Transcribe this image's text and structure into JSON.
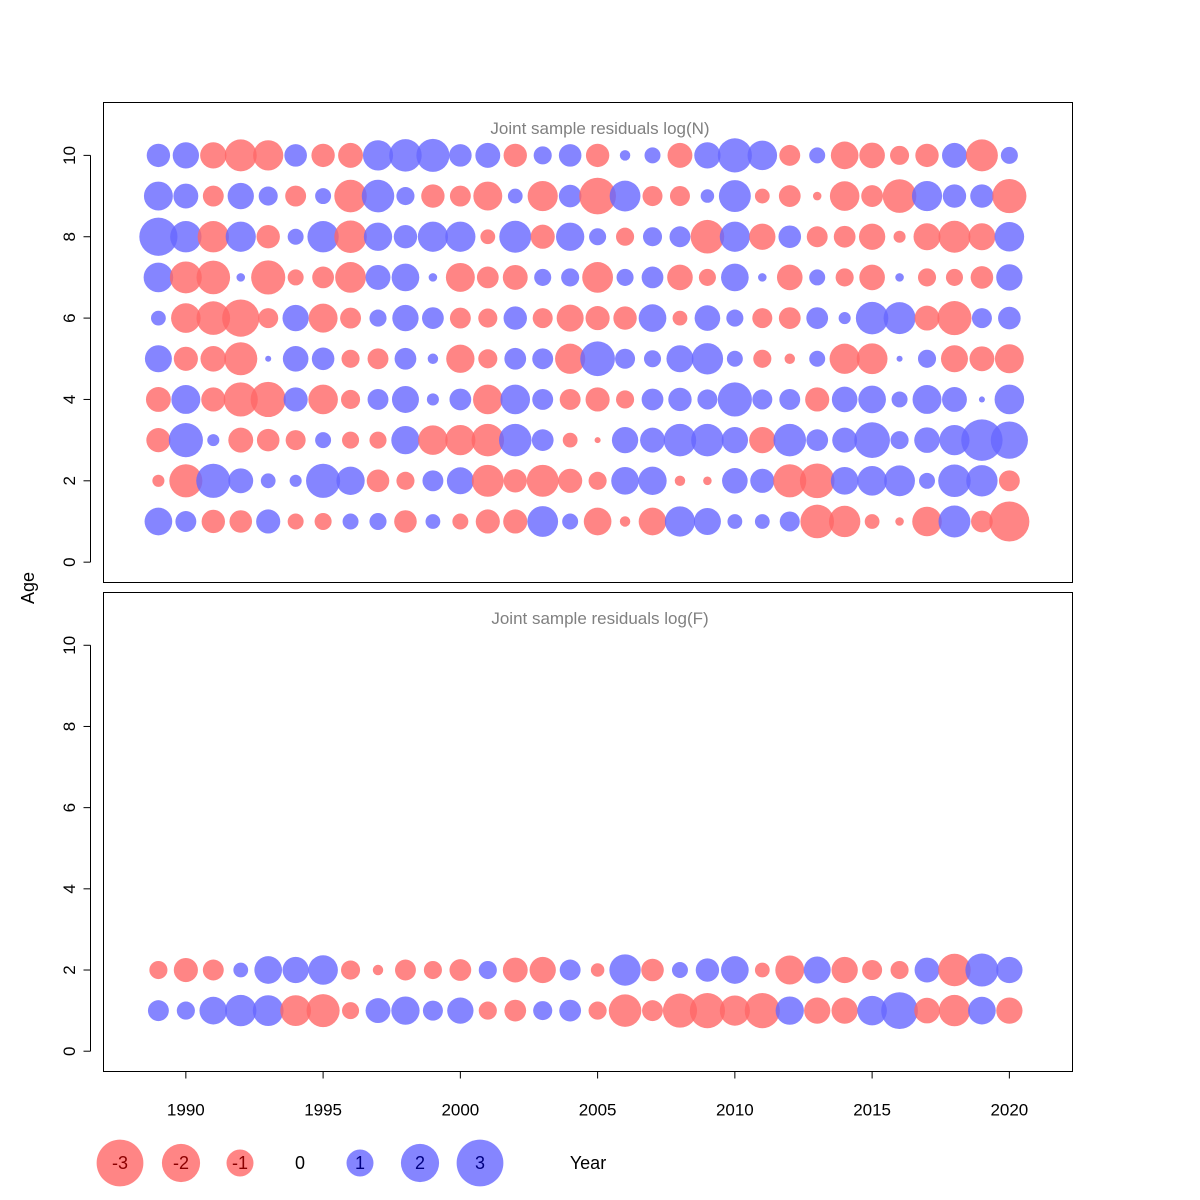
{
  "chart_data": {
    "type": "scatter",
    "subtype": "bubble",
    "xlabel": "Year",
    "ylabel": "Age",
    "xlim": [
      1987,
      2022.3
    ],
    "x_ticks": [
      "1990",
      "1995",
      "2000",
      "2005",
      "2010",
      "2015",
      "2020"
    ],
    "colors": {
      "positive": "#6666ff",
      "negative": "#ff6666"
    },
    "legend": {
      "placement": "bottom",
      "values": [
        -3,
        -2,
        -1,
        0,
        1,
        2,
        3
      ],
      "labels": [
        "-3",
        "-2",
        "-1",
        "0",
        "1",
        "2",
        "3"
      ]
    },
    "years": [
      1989,
      1990,
      1991,
      1992,
      1993,
      1994,
      1995,
      1996,
      1997,
      1998,
      1999,
      2000,
      2001,
      2002,
      2003,
      2004,
      2005,
      2006,
      2007,
      2008,
      2009,
      2010,
      2011,
      2012,
      2013,
      2014,
      2015,
      2016,
      2017,
      2018,
      2019,
      2020
    ],
    "panels": [
      {
        "title": "Joint sample residuals log(N)",
        "ylim": [
          -0.5,
          11.3
        ],
        "y_ticks": [
          "0",
          "2",
          "4",
          "6",
          "8",
          "10"
        ],
        "ages": [
          1,
          2,
          3,
          4,
          5,
          6,
          7,
          8,
          9,
          10
        ],
        "residuals": [
          [
            1.05,
            0.6,
            -0.75,
            -0.7,
            0.8,
            -0.35,
            -0.4,
            0.35,
            0.4,
            -0.7,
            0.3,
            -0.35,
            -0.8,
            -0.8,
            1.3,
            0.35,
            -1.05,
            -0.15,
            -1.05,
            1.25,
            1.0,
            0.3,
            0.3,
            0.55,
            -1.55,
            -1.35,
            -0.3,
            -0.1,
            -1.2,
            1.4,
            -0.65,
            -2.2
          ],
          [
            -0.2,
            -1.5,
            1.6,
            0.85,
            0.3,
            0.2,
            1.6,
            1.1,
            -0.7,
            -0.45,
            0.6,
            1.0,
            -1.4,
            -0.75,
            -1.4,
            -0.8,
            -0.45,
            1.05,
            1.1,
            -0.15,
            -0.1,
            0.9,
            0.8,
            -1.5,
            -1.65,
            1.05,
            1.2,
            1.3,
            0.35,
            1.45,
            1.35,
            -0.6
          ],
          [
            -0.8,
            1.6,
            0.2,
            -0.85,
            -0.7,
            -0.55,
            0.35,
            -0.4,
            -0.4,
            1.1,
            -1.2,
            -1.25,
            -1.45,
            1.45,
            0.65,
            -0.3,
            -0.05,
            0.95,
            0.85,
            1.45,
            1.45,
            0.95,
            -0.95,
            1.45,
            0.65,
            0.85,
            1.75,
            0.45,
            0.9,
            1.25,
            2.35,
            1.9
          ],
          [
            -0.85,
            1.15,
            -0.8,
            -1.6,
            -1.7,
            0.8,
            -1.2,
            -0.5,
            0.6,
            1.0,
            0.2,
            0.65,
            -1.2,
            1.2,
            0.6,
            -0.6,
            -0.8,
            -0.45,
            0.65,
            0.75,
            0.55,
            1.6,
            0.55,
            0.6,
            -0.8,
            0.9,
            1.05,
            0.35,
            1.15,
            0.85,
            0.05,
            1.2
          ],
          [
            1.0,
            -0.8,
            -0.9,
            -1.5,
            0.05,
            0.9,
            0.7,
            -0.45,
            -0.6,
            0.65,
            0.15,
            -1.1,
            -0.5,
            0.65,
            0.6,
            -1.25,
            1.65,
            0.55,
            0.4,
            1.0,
            1.35,
            0.35,
            -0.45,
            -0.15,
            0.35,
            -1.25,
            -1.3,
            0.05,
            0.45,
            -1.0,
            -0.85,
            -1.15
          ],
          [
            0.3,
            -1.2,
            -1.55,
            -1.9,
            -0.55,
            0.95,
            -1.15,
            -0.6,
            0.4,
            0.95,
            0.65,
            -0.6,
            -0.5,
            0.75,
            -0.55,
            -1.0,
            -0.8,
            -0.75,
            1.05,
            -0.3,
            0.9,
            0.4,
            -0.55,
            -0.65,
            0.65,
            0.2,
            1.45,
            1.4,
            -0.85,
            -1.6,
            0.55,
            0.7
          ],
          [
            1.2,
            -1.4,
            -1.55,
            0.1,
            -1.6,
            -0.35,
            -0.65,
            -1.3,
            0.85,
            1.05,
            0.1,
            -1.15,
            -0.65,
            -0.85,
            0.4,
            0.45,
            -1.3,
            0.4,
            0.65,
            -0.9,
            -0.4,
            1.05,
            0.1,
            -0.9,
            0.35,
            -0.45,
            -0.9,
            0.1,
            -0.45,
            -0.4,
            -0.7,
            0.95
          ],
          [
            2.0,
            1.35,
            -1.35,
            1.25,
            -0.75,
            0.35,
            1.35,
            -1.45,
            1.1,
            0.75,
            1.25,
            1.25,
            -0.3,
            1.4,
            -0.8,
            1.1,
            0.4,
            -0.45,
            0.5,
            0.6,
            -1.55,
            1.25,
            -0.95,
            0.7,
            -0.6,
            -0.65,
            -0.95,
            -0.2,
            -1.0,
            -1.4,
            -1.0,
            1.2
          ],
          [
            1.15,
            0.85,
            -0.6,
            0.95,
            0.5,
            -0.6,
            0.35,
            -1.45,
            1.45,
            0.45,
            -0.75,
            -0.6,
            -1.15,
            0.3,
            -1.25,
            0.7,
            -1.85,
            1.3,
            -0.55,
            -0.55,
            0.25,
            1.4,
            -0.3,
            -0.65,
            -0.1,
            -1.2,
            -0.65,
            -1.55,
            1.25,
            0.75,
            0.75,
            -1.6
          ],
          [
            0.75,
            0.95,
            -0.95,
            -1.4,
            -1.25,
            0.7,
            -0.75,
            -0.85,
            1.25,
            1.45,
            1.5,
            0.7,
            0.85,
            -0.75,
            0.45,
            0.7,
            -0.75,
            0.15,
            0.35,
            -0.85,
            0.95,
            1.6,
            1.2,
            -0.6,
            0.35,
            -1.05,
            -0.9,
            -0.5,
            -0.75,
            0.85,
            -1.4,
            0.4
          ]
        ]
      },
      {
        "title": "Joint sample residuals log(F)",
        "ylim": [
          -0.5,
          11.3
        ],
        "y_ticks": [
          "0",
          "2",
          "4",
          "6",
          "8",
          "10"
        ],
        "ages": [
          1,
          2
        ],
        "residuals": [
          [
            0.6,
            0.45,
            1.05,
            1.35,
            1.3,
            -1.3,
            -1.5,
            -0.4,
            0.85,
            1.1,
            0.55,
            0.95,
            -0.45,
            -0.65,
            0.5,
            0.65,
            -0.45,
            -1.45,
            -0.6,
            -1.6,
            -1.7,
            -1.25,
            -1.7,
            1.1,
            -0.95,
            -0.95,
            1.2,
            1.85,
            -0.9,
            -1.35,
            1.05,
            -0.95
          ],
          [
            -0.45,
            -0.8,
            -0.6,
            0.3,
            1.05,
            0.95,
            1.2,
            -0.5,
            -0.15,
            -0.6,
            -0.45,
            -0.65,
            0.45,
            -0.85,
            -0.95,
            0.6,
            -0.25,
            1.35,
            -0.7,
            0.35,
            0.75,
            1.05,
            -0.3,
            -1.15,
            1.0,
            -0.95,
            -0.55,
            -0.45,
            0.85,
            -1.45,
            1.5,
            0.95
          ]
        ]
      }
    ]
  }
}
